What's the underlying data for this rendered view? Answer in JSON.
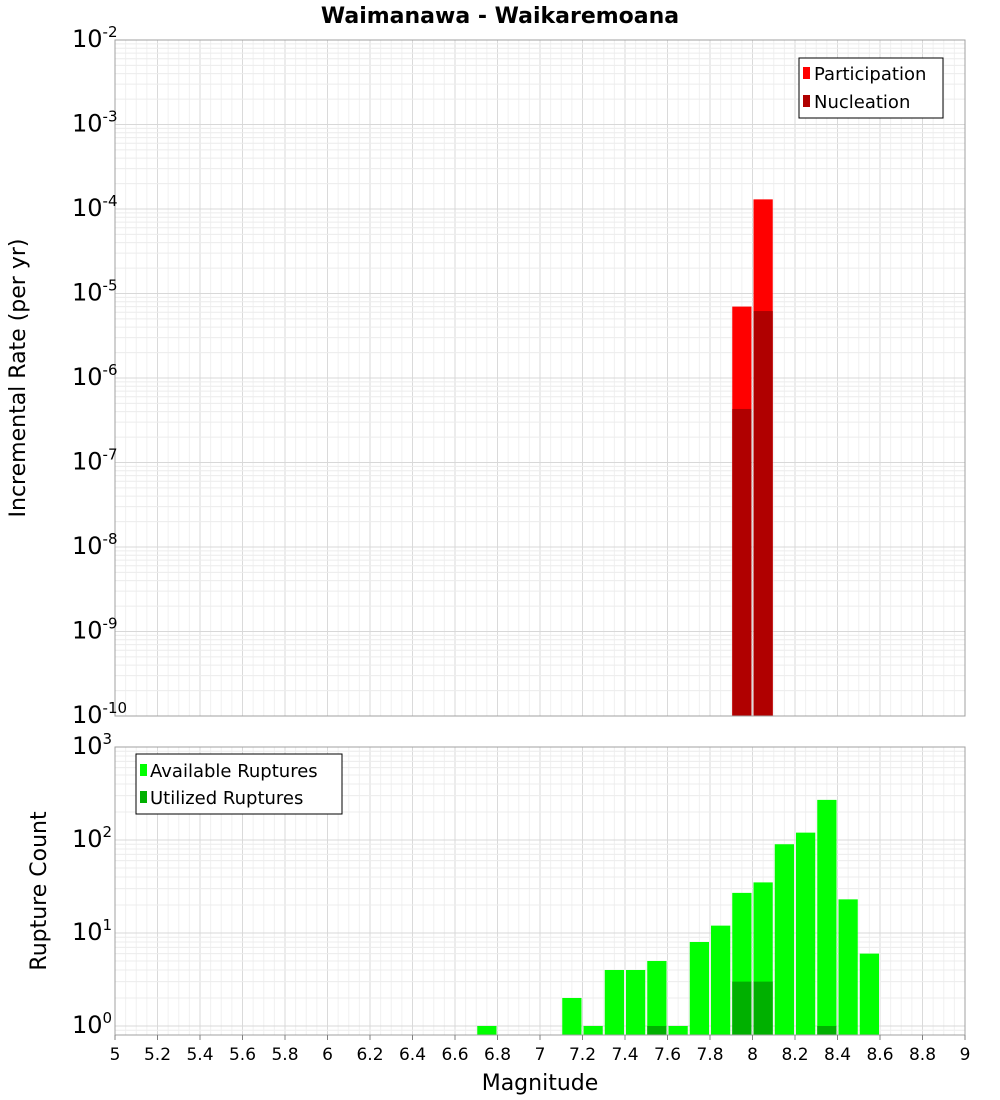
{
  "chart_data": [
    {
      "type": "bar",
      "title": "Waimanawa - Waikaremoana",
      "xlabel": "Magnitude",
      "ylabel": "Incremental Rate (per yr)",
      "yscale": "log",
      "ylim": [
        1e-10,
        0.01
      ],
      "xlim": [
        5,
        9
      ],
      "ytick_exponents": [
        "-10",
        "-9",
        "-8",
        "-7",
        "-6",
        "-5",
        "-4",
        "-3",
        "-2"
      ],
      "ytick_base": "10",
      "legend": {
        "position": "top-right",
        "entries": [
          "Participation",
          "Nucleation"
        ]
      },
      "colors": {
        "Participation": "#ff0000",
        "Nucleation": "#b00000"
      },
      "series": [
        {
          "name": "Participation",
          "x": [
            7.95,
            8.05
          ],
          "values": [
            7e-06,
            0.00013
          ]
        },
        {
          "name": "Nucleation",
          "x": [
            7.95,
            8.05
          ],
          "values": [
            4.3e-07,
            6.2e-06
          ]
        }
      ]
    },
    {
      "type": "bar",
      "xlabel": "Magnitude",
      "ylabel": "Rupture Count",
      "yscale": "log",
      "ylim": [
        0.8,
        1000
      ],
      "xlim": [
        5,
        9
      ],
      "xticks": [
        "5",
        "5.2",
        "5.4",
        "5.6",
        "5.8",
        "6",
        "6.2",
        "6.4",
        "6.6",
        "6.8",
        "7",
        "7.2",
        "7.4",
        "7.6",
        "7.8",
        "8",
        "8.2",
        "8.4",
        "8.6",
        "8.8",
        "9"
      ],
      "ytick_exponents": [
        "0",
        "1",
        "2",
        "3"
      ],
      "ytick_base": "10",
      "legend": {
        "position": "top-left",
        "entries": [
          "Available Ruptures",
          "Utilized Ruptures"
        ]
      },
      "colors": {
        "Available Ruptures": "#00ff00",
        "Utilized Ruptures": "#00b000"
      },
      "series": [
        {
          "name": "Available Ruptures",
          "x": [
            6.75,
            7.15,
            7.25,
            7.35,
            7.45,
            7.55,
            7.65,
            7.75,
            7.85,
            7.95,
            8.05,
            8.15,
            8.25,
            8.35,
            8.45,
            8.55
          ],
          "values": [
            1,
            2,
            1,
            4,
            4,
            5,
            1,
            8,
            12,
            27,
            35,
            90,
            120,
            270,
            23,
            6
          ]
        },
        {
          "name": "Utilized Ruptures",
          "x": [
            7.55,
            7.95,
            8.05,
            8.35
          ],
          "values": [
            1,
            3,
            3,
            1
          ]
        }
      ]
    }
  ]
}
